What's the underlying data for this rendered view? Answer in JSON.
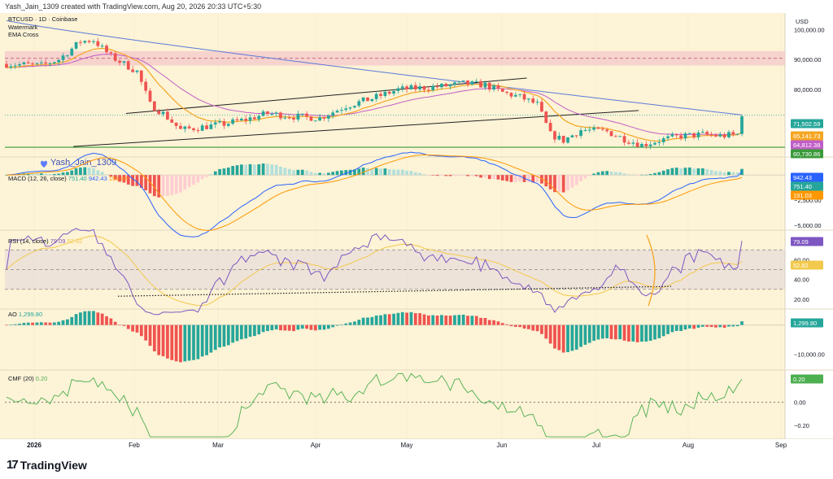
{
  "header": {
    "caption": "Yash_Jain_1309 created with TradingView.com, Aug 20, 2026 20:33 UTC+5:30"
  },
  "footer": {
    "brand": "TradingView"
  },
  "colors": {
    "background": "#fdf3d6",
    "up": "#26a69a",
    "down": "#ef5350",
    "ema_fast": "#f5a623",
    "ema_mid": "#c05ec8",
    "ema_slow": "#5b7bd8",
    "support": "#3a9a3a",
    "zone": "#f3b8c8",
    "macd": "#2962ff",
    "signal": "#ff9800",
    "rsi": "#7e57c2",
    "rsi_ma": "#f2c94c",
    "cmf": "#4caf50"
  },
  "chart_data": [
    {
      "type": "candlestick",
      "title": "BTCUSD · 1D · Coinbase",
      "legend": [
        "Watermark",
        "EMA Cross"
      ],
      "watermark": "Yash_Jain_1309",
      "currency": "USD",
      "x_ticks": [
        "2026",
        "Feb",
        "Mar",
        "Apr",
        "May",
        "Jun",
        "Jul",
        "Aug",
        "Sep"
      ],
      "y_ticks": [
        "100,000.00",
        "90,000.00",
        "80,000.00"
      ],
      "ylim": [
        57500,
        105500
      ],
      "price_labels": [
        {
          "text": "71,502.59",
          "value": 71502.59,
          "color": "#26a69a"
        },
        {
          "text": "65,141.73",
          "value": 65141.73,
          "color": "#f5a623"
        },
        {
          "text": "64,812.38",
          "value": 64812.38,
          "color": "#c05ec8"
        },
        {
          "text": "60,730.86",
          "value": 60730.86,
          "color": "#3a9a3a"
        }
      ],
      "resistance_zone": [
        88000,
        92800
      ],
      "support_level": 60730.86,
      "ema_slow_line": 71502.59,
      "channel_upper": [
        [
          2026.082,
          72000
        ],
        [
          2026.44,
          83800
        ]
      ],
      "channel_lower": [
        [
          2026.035,
          61000
        ],
        [
          2026.54,
          73000
        ]
      ]
    },
    {
      "type": "histogram",
      "title": "MACD (12, 26, close)",
      "values_text": [
        "751.40",
        "942.43",
        "191.03"
      ],
      "y_ticks": [
        "−2,500.00",
        "−5,000.00"
      ],
      "labels": [
        {
          "text": "942.43",
          "value": 942.43,
          "color": "#2962ff"
        },
        {
          "text": "751.40",
          "value": 751.4,
          "color": "#26a69a"
        },
        {
          "text": "191.03",
          "value": 191.03,
          "color": "#ff9800"
        }
      ],
      "ylim": [
        -5500,
        1800
      ]
    },
    {
      "type": "line",
      "title": "RSI (14, close)",
      "values_text": [
        "79.09",
        "52.82"
      ],
      "y_ticks": [
        "60.00",
        "40.00",
        "20.00"
      ],
      "bands": [
        70,
        50,
        30
      ],
      "labels": [
        {
          "text": "79.09",
          "value": 79.09,
          "color": "#7e57c2"
        },
        {
          "text": "52.82",
          "value": 52.82,
          "color": "#f2c94c"
        }
      ],
      "ylim": [
        10,
        90
      ]
    },
    {
      "type": "histogram",
      "title": "AO",
      "values_text": [
        "1,299.80"
      ],
      "y_ticks": [
        "−10,000.00"
      ],
      "labels": [
        {
          "text": "1,299.80",
          "value": 1299.8,
          "color": "#26a69a"
        }
      ],
      "ylim": [
        -15500,
        5500
      ]
    },
    {
      "type": "line",
      "title": "CMF (20)",
      "values_text": [
        "0.20"
      ],
      "y_ticks": [
        "0.00",
        "−0.20"
      ],
      "labels": [
        {
          "text": "0.20",
          "value": 0.2,
          "color": "#4caf50"
        }
      ],
      "ylim": [
        -0.32,
        0.28
      ]
    }
  ]
}
